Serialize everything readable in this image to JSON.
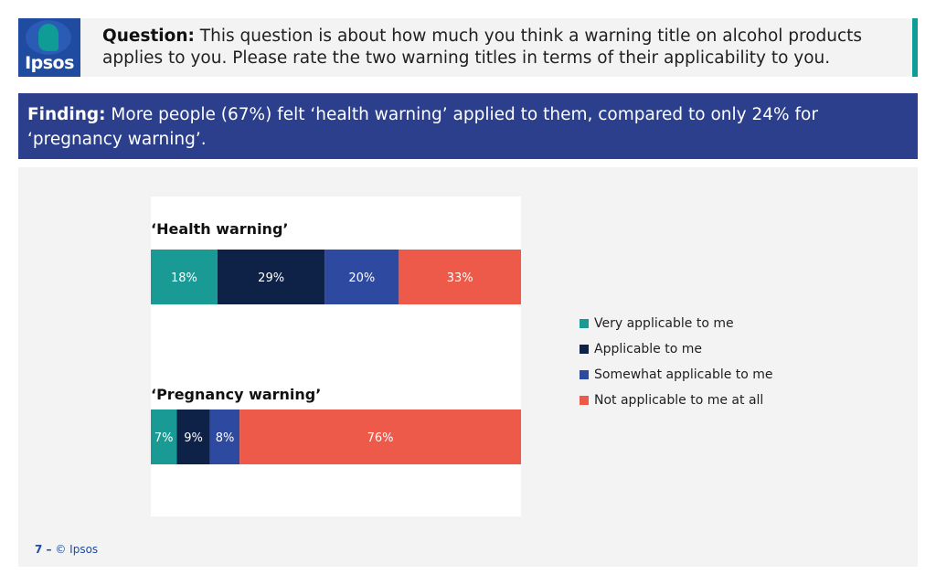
{
  "header": {
    "logo_text": "Ipsos",
    "question_label": "Question:",
    "question_text": " This question is about how much you think a warning title on alcohol products applies to you. Please rate the two warning titles in terms of their applicability to you."
  },
  "finding": {
    "label": "Finding:",
    "text": " More people (67%) felt ‘health warning’ applied to them, compared to only 24% for ‘pregnancy warning’."
  },
  "colors": {
    "very": "#1a9a95",
    "applicable": "#0e2147",
    "somewhat": "#2e4aa0",
    "not": "#ee5a4a",
    "accent_teal": "#0f9b96",
    "finding_bg": "#2b3f8c"
  },
  "chart_data": {
    "type": "bar",
    "orientation": "horizontal",
    "stacked": true,
    "categories": [
      "‘Health warning’",
      "‘Pregnancy warning’"
    ],
    "series": [
      {
        "name": "Very applicable to me",
        "values": [
          18,
          7
        ]
      },
      {
        "name": "Applicable to me",
        "values": [
          29,
          9
        ]
      },
      {
        "name": "Somewhat applicable to me",
        "values": [
          20,
          8
        ]
      },
      {
        "name": "Not applicable to me at all",
        "values": [
          33,
          76
        ]
      }
    ],
    "data_labels": [
      [
        "18%",
        "29%",
        "20%",
        "33%"
      ],
      [
        "7%",
        "9%",
        "8%",
        "76%"
      ]
    ],
    "legend_position": "right",
    "grid": false
  },
  "footer": {
    "page_number": "7 –",
    "copyright": "© Ipsos"
  }
}
